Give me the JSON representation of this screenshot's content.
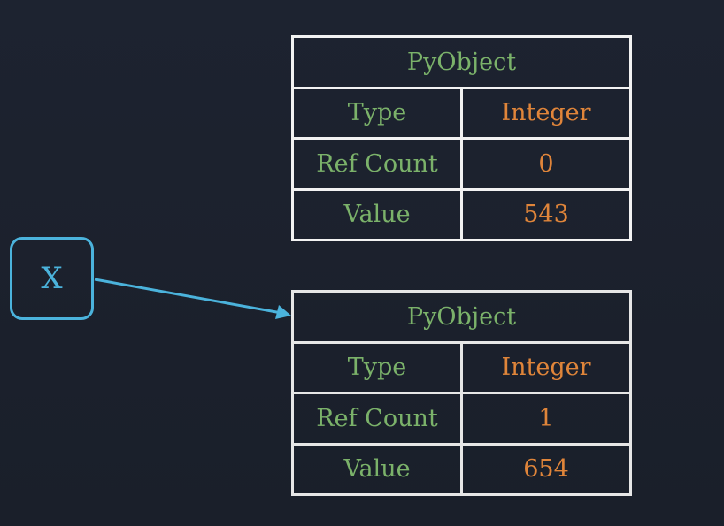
{
  "objects": [
    {
      "header": "PyObject",
      "rows": [
        {
          "label": "Type",
          "value": "Integer"
        },
        {
          "label": "Ref Count",
          "value": "0"
        },
        {
          "label": "Value",
          "value": "543"
        }
      ]
    },
    {
      "header": "PyObject",
      "rows": [
        {
          "label": "Type",
          "value": "Integer"
        },
        {
          "label": "Ref Count",
          "value": "1"
        },
        {
          "label": "Value",
          "value": "654"
        }
      ]
    }
  ],
  "variable": {
    "name": "X"
  },
  "colors": {
    "background": "#1c2230",
    "border": "#f2f2f2",
    "label": "#7bb26a",
    "value": "#e0853a",
    "reference": "#4bb3dc"
  }
}
